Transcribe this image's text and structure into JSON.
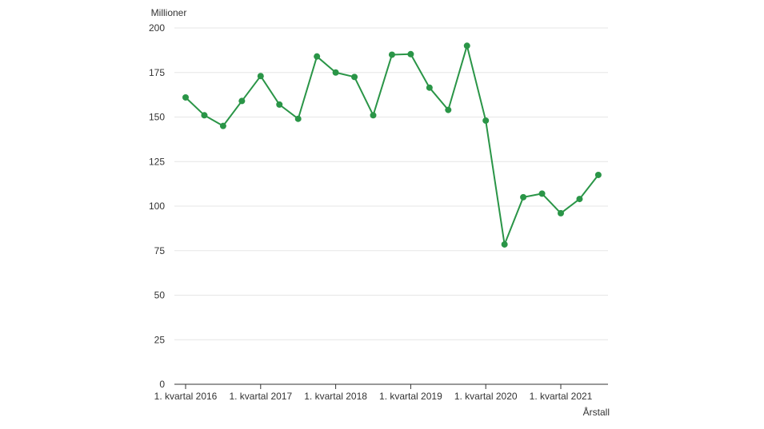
{
  "chart_data": {
    "type": "line",
    "ylabel": "Millioner",
    "xlabel": "Årstall",
    "ylim": [
      0,
      200
    ],
    "yticks": [
      0,
      25,
      50,
      75,
      100,
      125,
      150,
      175,
      200
    ],
    "grid": true,
    "x": [
      "1. kvartal 2016",
      "2. kvartal 2016",
      "3. kvartal 2016",
      "4. kvartal 2016",
      "1. kvartal 2017",
      "2. kvartal 2017",
      "3. kvartal 2017",
      "4. kvartal 2017",
      "1. kvartal 2018",
      "2. kvartal 2018",
      "3. kvartal 2018",
      "4. kvartal 2018",
      "1. kvartal 2019",
      "2. kvartal 2019",
      "3. kvartal 2019",
      "4. kvartal 2019",
      "1. kvartal 2020",
      "2. kvartal 2020",
      "3. kvartal 2020",
      "4. kvartal 2020",
      "1. kvartal 2021",
      "2. kvartal 2021",
      "3. kvartal 2021"
    ],
    "xtick_labels": [
      "1. kvartal 2016",
      "1. kvartal 2017",
      "1. kvartal 2018",
      "1. kvartal 2019",
      "1. kvartal 2020",
      "1. kvartal 2021"
    ],
    "series": [
      {
        "values": [
          161,
          151,
          145,
          159,
          173,
          157,
          149,
          184,
          175,
          172.5,
          151,
          185,
          185.3,
          166.5,
          154,
          190,
          148,
          78.5,
          105,
          107,
          96,
          104,
          117.5
        ]
      }
    ],
    "colors": {
      "line": "#2a9547",
      "grid": "#e6e6e6",
      "axis": "#333333"
    }
  }
}
